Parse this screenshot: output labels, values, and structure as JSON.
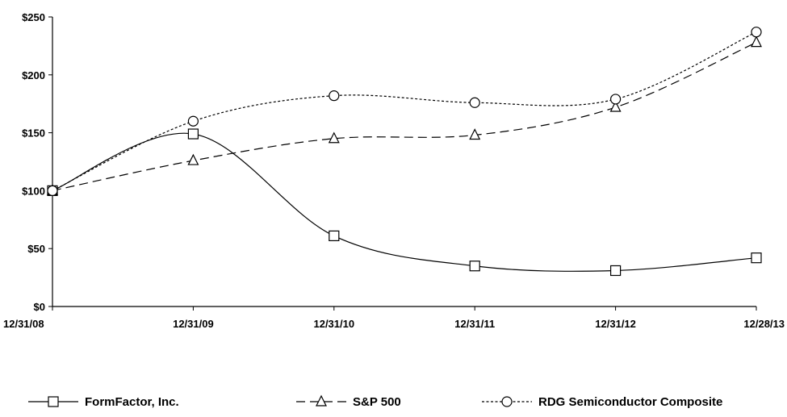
{
  "chart_data": {
    "type": "line",
    "categories": [
      "12/31/08",
      "12/31/09",
      "12/31/10",
      "12/31/11",
      "12/31/12",
      "12/28/13"
    ],
    "ylim": [
      0,
      250
    ],
    "yticks": [
      0,
      50,
      100,
      150,
      200,
      250
    ],
    "ytick_labels": [
      "$0",
      "$50",
      "$100",
      "$150",
      "$200",
      "$250"
    ],
    "grid": false,
    "legend_position": "bottom",
    "series": [
      {
        "name": "FormFactor, Inc.",
        "marker": "square",
        "dash": "solid",
        "values": [
          100,
          149,
          61,
          35,
          31,
          42
        ]
      },
      {
        "name": "S&P 500",
        "marker": "triangle",
        "dash": "dashed",
        "values": [
          100,
          126,
          145,
          148,
          172,
          228
        ]
      },
      {
        "name": "RDG Semiconductor Composite",
        "marker": "circle",
        "dash": "dotted",
        "values": [
          100,
          160,
          182,
          176,
          179,
          237
        ]
      }
    ]
  }
}
